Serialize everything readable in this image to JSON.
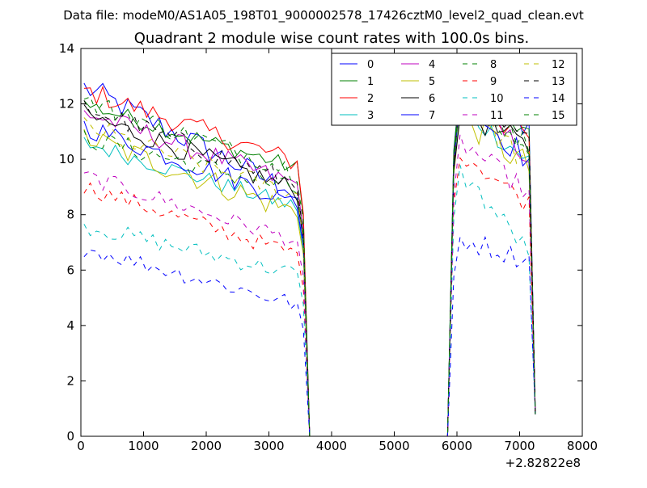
{
  "header": {
    "data_file": "Data file: modeM0/AS1A05_198T01_9000002578_17426cztM0_level2_quad_clean.evt"
  },
  "chart_data": {
    "type": "line",
    "title": "Quadrant 2 module wise count rates with 100.0s bins.",
    "xlabel": "",
    "ylabel": "",
    "x_offset_label": "+2.82822e8",
    "xlim": [
      0,
      8000
    ],
    "ylim": [
      0,
      14
    ],
    "xticks": [
      0,
      1000,
      2000,
      3000,
      4000,
      5000,
      6000,
      7000,
      8000
    ],
    "yticks": [
      0,
      2,
      4,
      6,
      8,
      10,
      12,
      14
    ],
    "grid": false,
    "legend_position": "top-right",
    "segments": [
      {
        "start": 50,
        "step": 100,
        "count": 36
      },
      {
        "start": 3650,
        "step": 100,
        "count": 23
      },
      {
        "start": 5950,
        "step": 100,
        "count": 14
      }
    ],
    "series": [
      {
        "name": "0",
        "color": "#0000ff",
        "dash": "solid",
        "level1": 12.6,
        "end1": 8.6,
        "level2": 12.9,
        "end2": 11.1,
        "amp": 0.3
      },
      {
        "name": "1",
        "color": "#008000",
        "dash": "solid",
        "level1": 12.0,
        "end1": 9.6,
        "level2": 12.8,
        "end2": 10.8,
        "amp": 0.2
      },
      {
        "name": "2",
        "color": "#ff0000",
        "dash": "solid",
        "level1": 12.5,
        "end1": 9.8,
        "level2": 12.5,
        "end2": 10.6,
        "amp": 0.25
      },
      {
        "name": "3",
        "color": "#00bfbf",
        "dash": "solid",
        "level1": 10.6,
        "end1": 8.2,
        "level2": 12.0,
        "end2": 9.8,
        "amp": 0.2
      },
      {
        "name": "4",
        "color": "#bf00bf",
        "dash": "solid",
        "level1": 11.7,
        "end1": 9.0,
        "level2": 12.2,
        "end2": 10.0,
        "amp": 0.25
      },
      {
        "name": "5",
        "color": "#bfbf00",
        "dash": "solid",
        "level1": 10.8,
        "end1": 8.0,
        "level2": 11.8,
        "end2": 9.5,
        "amp": 0.3
      },
      {
        "name": "6",
        "color": "#000000",
        "dash": "solid",
        "level1": 11.6,
        "end1": 8.8,
        "level2": 12.0,
        "end2": 10.2,
        "amp": 0.25
      },
      {
        "name": "7",
        "color": "#0000ff",
        "dash": "solid",
        "level1": 11.2,
        "end1": 8.4,
        "level2": 12.3,
        "end2": 9.8,
        "amp": 0.25
      },
      {
        "name": "8",
        "color": "#008000",
        "dash": "dashed",
        "level1": 10.8,
        "end1": 8.8,
        "level2": 12.6,
        "end2": 10.3,
        "amp": 0.25
      },
      {
        "name": "9",
        "color": "#ff0000",
        "dash": "dashed",
        "level1": 9.0,
        "end1": 6.5,
        "level2": 10.5,
        "end2": 8.2,
        "amp": 0.2
      },
      {
        "name": "10",
        "color": "#00bfbf",
        "dash": "dashed",
        "level1": 7.6,
        "end1": 5.8,
        "level2": 9.8,
        "end2": 6.4,
        "amp": 0.2
      },
      {
        "name": "11",
        "color": "#bf00bf",
        "dash": "dashed",
        "level1": 9.4,
        "end1": 7.0,
        "level2": 10.8,
        "end2": 8.6,
        "amp": 0.2
      },
      {
        "name": "12",
        "color": "#bfbf00",
        "dash": "dashed",
        "level1": 11.2,
        "end1": 8.6,
        "level2": 12.4,
        "end2": 9.6,
        "amp": 0.25
      },
      {
        "name": "13",
        "color": "#000000",
        "dash": "dashed",
        "level1": 11.9,
        "end1": 9.0,
        "level2": 12.3,
        "end2": 10.4,
        "amp": 0.25
      },
      {
        "name": "14",
        "color": "#0000ff",
        "dash": "dashed",
        "level1": 6.8,
        "end1": 4.7,
        "level2": 7.2,
        "end2": 6.3,
        "amp": 0.2
      },
      {
        "name": "15",
        "color": "#008000",
        "dash": "dashed",
        "level1": 12.1,
        "end1": 9.5,
        "level2": 12.5,
        "end2": 10.4,
        "amp": 0.25
      }
    ]
  }
}
